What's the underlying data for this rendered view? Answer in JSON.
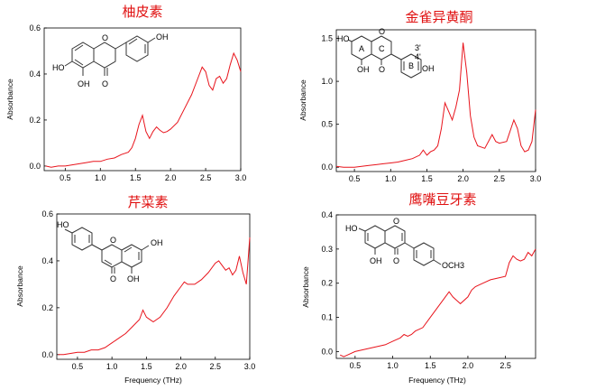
{
  "chart_data": [
    {
      "type": "line",
      "title": "柚皮素",
      "xlabel": "",
      "ylabel": "Absorbance",
      "xlim": [
        0.2,
        3.0
      ],
      "ylim": [
        -0.02,
        0.6
      ],
      "xticks": [
        "0.5",
        "1.0",
        "1.5",
        "2.0",
        "2.5",
        "3.0"
      ],
      "yticks": [
        "0.0",
        "0.2",
        "0.4",
        "0.6"
      ],
      "series": [
        {
          "color": "#e8141c",
          "x": [
            0.22,
            0.3,
            0.4,
            0.5,
            0.6,
            0.7,
            0.8,
            0.9,
            1.0,
            1.1,
            1.2,
            1.3,
            1.4,
            1.45,
            1.5,
            1.55,
            1.6,
            1.65,
            1.7,
            1.75,
            1.8,
            1.85,
            1.9,
            1.95,
            2.0,
            2.1,
            2.2,
            2.3,
            2.4,
            2.45,
            2.5,
            2.55,
            2.6,
            2.65,
            2.7,
            2.75,
            2.8,
            2.85,
            2.9,
            2.95,
            3.0
          ],
          "y": [
            0.0,
            -0.005,
            0.0,
            0.0,
            0.005,
            0.01,
            0.015,
            0.02,
            0.02,
            0.03,
            0.035,
            0.05,
            0.06,
            0.08,
            0.12,
            0.18,
            0.22,
            0.15,
            0.12,
            0.15,
            0.17,
            0.155,
            0.145,
            0.15,
            0.16,
            0.19,
            0.25,
            0.31,
            0.39,
            0.43,
            0.41,
            0.35,
            0.33,
            0.38,
            0.39,
            0.36,
            0.38,
            0.44,
            0.49,
            0.46,
            0.41
          ]
        }
      ],
      "molecule_labels": [
        "OH",
        "HO",
        "O",
        "OH",
        "O"
      ]
    },
    {
      "type": "line",
      "title": "金雀异黄酮",
      "xlabel": "",
      "ylabel": "Absorbance",
      "xlim": [
        0.25,
        3.0
      ],
      "ylim": [
        -0.05,
        1.6
      ],
      "xticks": [
        "0.5",
        "1.0",
        "1.5",
        "2.0",
        "2.5",
        "3.0"
      ],
      "yticks": [
        "0.0",
        "0.5",
        "1.0",
        "1.5"
      ],
      "series": [
        {
          "color": "#e8141c",
          "x": [
            0.25,
            0.35,
            0.5,
            0.6,
            0.7,
            0.8,
            0.9,
            1.0,
            1.1,
            1.2,
            1.3,
            1.4,
            1.45,
            1.5,
            1.55,
            1.6,
            1.65,
            1.7,
            1.75,
            1.8,
            1.85,
            1.9,
            1.95,
            2.0,
            2.05,
            2.1,
            2.15,
            2.2,
            2.3,
            2.4,
            2.45,
            2.5,
            2.6,
            2.7,
            2.75,
            2.8,
            2.85,
            2.9,
            2.95,
            3.0
          ],
          "y": [
            0.01,
            0.0,
            0.0,
            0.01,
            0.02,
            0.03,
            0.04,
            0.05,
            0.06,
            0.08,
            0.1,
            0.14,
            0.2,
            0.14,
            0.18,
            0.2,
            0.25,
            0.45,
            0.75,
            0.65,
            0.55,
            0.7,
            0.9,
            1.45,
            1.1,
            0.6,
            0.35,
            0.25,
            0.22,
            0.38,
            0.3,
            0.28,
            0.3,
            0.55,
            0.45,
            0.25,
            0.18,
            0.2,
            0.3,
            0.67
          ]
        }
      ],
      "molecule_labels": [
        "HO",
        "O",
        "A",
        "C",
        "OH",
        "O",
        "B",
        "3'",
        "4'",
        "OH"
      ]
    },
    {
      "type": "line",
      "title": "芹菜素",
      "xlabel": "",
      "ylabel": "Absorbance",
      "xlim": [
        0.2,
        3.0
      ],
      "ylim": [
        -0.02,
        0.6
      ],
      "xticks": [
        "0.5",
        "1.0",
        "1.5",
        "2.0",
        "2.5",
        "3.0"
      ],
      "yticks": [
        "0.0",
        "0.2",
        "0.4",
        "0.6"
      ],
      "series": [
        {
          "color": "#e8141c",
          "x": [
            0.22,
            0.3,
            0.4,
            0.5,
            0.6,
            0.7,
            0.8,
            0.9,
            1.0,
            1.1,
            1.2,
            1.3,
            1.4,
            1.45,
            1.5,
            1.55,
            1.6,
            1.7,
            1.8,
            1.9,
            2.0,
            2.05,
            2.1,
            2.2,
            2.3,
            2.4,
            2.5,
            2.55,
            2.6,
            2.65,
            2.7,
            2.75,
            2.8,
            2.85,
            2.9,
            2.95,
            3.0
          ],
          "y": [
            0.0,
            0.0,
            0.005,
            0.01,
            0.01,
            0.02,
            0.02,
            0.03,
            0.05,
            0.07,
            0.09,
            0.12,
            0.15,
            0.19,
            0.16,
            0.15,
            0.14,
            0.16,
            0.2,
            0.25,
            0.29,
            0.31,
            0.3,
            0.3,
            0.32,
            0.35,
            0.39,
            0.4,
            0.38,
            0.36,
            0.37,
            0.34,
            0.36,
            0.42,
            0.35,
            0.3,
            0.5
          ]
        }
      ],
      "molecule_labels": [
        "HO",
        "O",
        "OH",
        "OH",
        "O"
      ]
    },
    {
      "type": "line",
      "title": "鹰嘴豆牙素",
      "xlabel": "",
      "ylabel": "Absorbance",
      "xlim": [
        0.25,
        2.9
      ],
      "ylim": [
        -0.02,
        0.4
      ],
      "xticks": [
        "0.5",
        "1.0",
        "1.5",
        "2.0",
        "2.5"
      ],
      "yticks": [
        "0.0",
        "0.1",
        "0.2",
        "0.3",
        "0.4"
      ],
      "series": [
        {
          "color": "#e8141c",
          "x": [
            0.3,
            0.35,
            0.4,
            0.5,
            0.6,
            0.7,
            0.8,
            0.9,
            1.0,
            1.1,
            1.15,
            1.2,
            1.25,
            1.3,
            1.4,
            1.5,
            1.6,
            1.7,
            1.75,
            1.8,
            1.85,
            1.9,
            2.0,
            2.05,
            2.1,
            2.2,
            2.3,
            2.4,
            2.5,
            2.55,
            2.6,
            2.65,
            2.7,
            2.75,
            2.8,
            2.85,
            2.9
          ],
          "y": [
            -0.01,
            -0.015,
            -0.01,
            0.0,
            0.005,
            0.01,
            0.015,
            0.02,
            0.03,
            0.04,
            0.05,
            0.045,
            0.05,
            0.06,
            0.07,
            0.1,
            0.13,
            0.16,
            0.175,
            0.16,
            0.15,
            0.14,
            0.16,
            0.18,
            0.19,
            0.2,
            0.21,
            0.215,
            0.22,
            0.26,
            0.28,
            0.27,
            0.265,
            0.27,
            0.29,
            0.28,
            0.3
          ]
        }
      ],
      "molecule_labels": [
        "HO",
        "O",
        "OH",
        "O",
        "OCH3"
      ]
    }
  ],
  "x_axis_label": "Frequency (THz)"
}
